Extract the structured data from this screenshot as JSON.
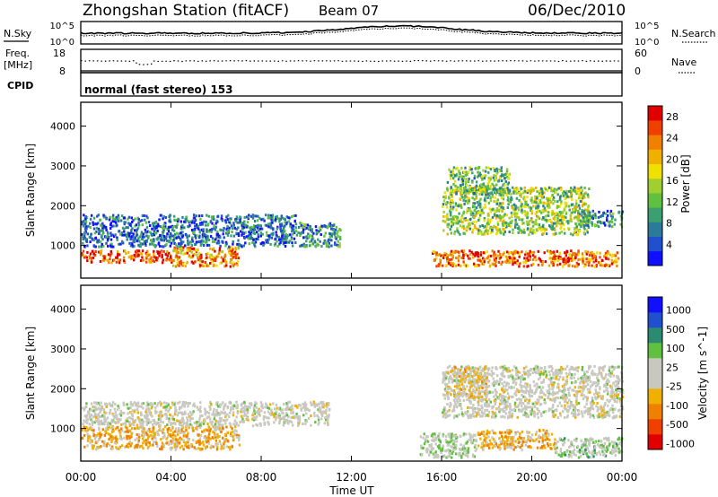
{
  "header": {
    "station": "Zhongshan Station (fitACF)",
    "beam": "Beam 07",
    "date": "06/Dec/2010"
  },
  "noise_panel": {
    "left_label": "N.Sky",
    "left_ticks": [
      "10^5",
      "10^0"
    ],
    "right_label": "N.Search",
    "right_ticks": [
      "10^5",
      "10^0"
    ]
  },
  "freq_panel": {
    "left_label_line1": "Freq.",
    "left_label_line2": "[MHz]",
    "left_ticks": [
      "18",
      "8"
    ],
    "right_label": "Nave",
    "right_ticks": [
      "60",
      "0"
    ]
  },
  "cpid_panel": {
    "label": "CPID",
    "mode_text": "normal (fast stereo) 153"
  },
  "chart_data": [
    {
      "type": "heatmap",
      "title": "",
      "xlabel": "",
      "ylabel": "Slant Range [km]",
      "x_ticks": [
        "00:00",
        "04:00",
        "08:00",
        "12:00",
        "16:00",
        "20:00",
        "00:00"
      ],
      "xlim_hours": [
        0,
        24
      ],
      "y_ticks": [
        "1000",
        "2000",
        "3000",
        "4000"
      ],
      "ylim_km": [
        180,
        4600
      ],
      "colorbar": {
        "label": "Power [dB]",
        "ticks": [
          "4",
          "8",
          "12",
          "16",
          "20",
          "24",
          "28"
        ],
        "range": [
          0,
          30
        ],
        "colors": [
          "#1010ff",
          "#2050d0",
          "#2c7a9a",
          "#3aa070",
          "#60c040",
          "#a0d030",
          "#f0e000",
          "#f0b000",
          "#f08000",
          "#f04000",
          "#e00000"
        ]
      },
      "regions": [
        {
          "t0": 0.0,
          "t1": 4.0,
          "r0": 600,
          "r1": 900,
          "value": 26
        },
        {
          "t0": 4.0,
          "t1": 7.0,
          "r0": 500,
          "r1": 1000,
          "value": 22
        },
        {
          "t0": 0.0,
          "t1": 9.5,
          "r0": 1000,
          "r1": 1800,
          "value": 6
        },
        {
          "t0": 9.5,
          "t1": 11.5,
          "r0": 1000,
          "r1": 1600,
          "value": 8
        },
        {
          "t0": 15.5,
          "t1": 23.8,
          "r0": 500,
          "r1": 900,
          "value": 24
        },
        {
          "t0": 16.0,
          "t1": 22.5,
          "r0": 1300,
          "r1": 2500,
          "value": 14
        },
        {
          "t0": 16.2,
          "t1": 19.0,
          "r0": 2300,
          "r1": 3000,
          "value": 12
        },
        {
          "t0": 22.0,
          "t1": 24.0,
          "r0": 1500,
          "r1": 1900,
          "value": 8
        }
      ]
    },
    {
      "type": "heatmap",
      "title": "",
      "xlabel": "Time UT",
      "ylabel": "Slant Range [km]",
      "x_ticks": [
        "00:00",
        "04:00",
        "08:00",
        "12:00",
        "16:00",
        "20:00",
        "00:00"
      ],
      "xlim_hours": [
        0,
        24
      ],
      "y_ticks": [
        "1000",
        "2000",
        "3000",
        "4000"
      ],
      "ylim_km": [
        180,
        4600
      ],
      "colorbar": {
        "label": "Velocity [m s^-1]",
        "ticks": [
          "1000",
          "500",
          "100",
          "25",
          "-25",
          "-100",
          "-500",
          "-1000"
        ],
        "range": [
          -1000,
          1000
        ],
        "colors": [
          "#e00000",
          "#f04000",
          "#f08000",
          "#f0b000",
          "#c8c8c0",
          "#c8c8c0",
          "#60c040",
          "#2c8a70",
          "#2050d0",
          "#1010ff"
        ]
      },
      "regions": [
        {
          "t0": 0.0,
          "t1": 7.0,
          "r0": 500,
          "r1": 1100,
          "value": -300
        },
        {
          "t0": 0.0,
          "t1": 11.0,
          "r0": 1100,
          "r1": 1700,
          "value": 0
        },
        {
          "t0": 15.0,
          "t1": 17.5,
          "r0": 300,
          "r1": 900,
          "value": 150
        },
        {
          "t0": 17.5,
          "t1": 21.0,
          "r0": 500,
          "r1": 1000,
          "value": -300
        },
        {
          "t0": 21.0,
          "t1": 24.0,
          "r0": 300,
          "r1": 800,
          "value": 200
        },
        {
          "t0": 16.0,
          "t1": 24.0,
          "r0": 1300,
          "r1": 2600,
          "value": 0
        },
        {
          "t0": 16.5,
          "t1": 18.0,
          "r0": 1800,
          "r1": 2600,
          "value": -200
        }
      ]
    }
  ]
}
